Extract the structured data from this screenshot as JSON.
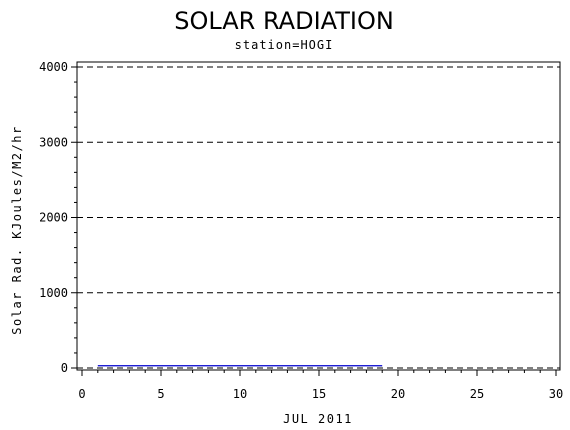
{
  "chart_data": {
    "type": "line",
    "title": "SOLAR RADIATION",
    "subtitle": "station=HOGI",
    "xlabel": "JUL 2011",
    "ylabel": "Solar Rad. KJoules/M2/hr",
    "xlim": [
      0,
      30
    ],
    "ylim": [
      0,
      4000
    ],
    "x_ticks": [
      0,
      5,
      10,
      15,
      20,
      25,
      30
    ],
    "y_ticks": [
      0,
      1000,
      2000,
      3000,
      4000
    ],
    "grid": "horizontal dashed",
    "series": [
      {
        "color": "#0000cc",
        "x": [
          1,
          19
        ],
        "y": [
          30,
          30
        ]
      }
    ]
  }
}
